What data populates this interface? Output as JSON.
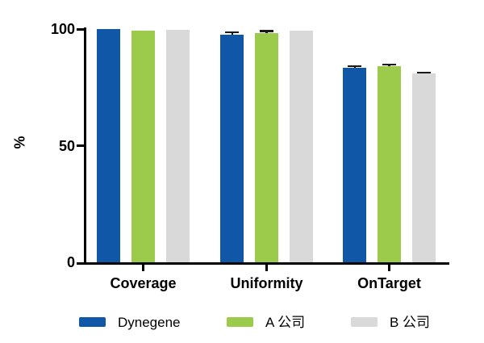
{
  "chart_data": {
    "type": "bar",
    "title": "",
    "xlabel": "",
    "ylabel": "%",
    "categories": [
      "Coverage",
      "Uniformity",
      "OnTarget"
    ],
    "series": [
      {
        "name": "Dynegene",
        "color": "#1057A8",
        "values": [
          99.9,
          97.6,
          83.3
        ],
        "errors": [
          null,
          1.0,
          0.8
        ]
      },
      {
        "name": "A 公司",
        "color": "#9CCB4B",
        "values": [
          99.2,
          98.4,
          84.0
        ],
        "errors": [
          null,
          0.8,
          0.8
        ]
      },
      {
        "name": "B 公司",
        "color": "#D9D9D9",
        "values": [
          99.8,
          99.3,
          80.8
        ],
        "errors": [
          null,
          null,
          0.5
        ]
      }
    ],
    "ylim": [
      0,
      100
    ],
    "yticks": [
      0,
      50,
      100
    ],
    "grid": false,
    "legend_position": "bottom",
    "axis_color": "#000000",
    "error_bar_color": "#1A1A1A",
    "background_color": "#FFFFFF"
  }
}
